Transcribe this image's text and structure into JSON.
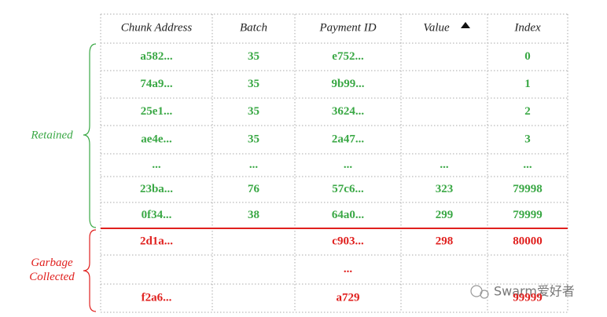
{
  "table": {
    "columns": [
      "Chunk Address",
      "Batch",
      "Payment ID",
      "Value",
      "Index"
    ],
    "groups": [
      {
        "label": [
          "Retained"
        ],
        "color": "#3aa845",
        "rows": [
          [
            "a582...",
            "35",
            "e752...",
            null,
            "0"
          ],
          [
            "74a9...",
            "35",
            "9b99...",
            null,
            "1"
          ],
          [
            "25e1...",
            "35",
            "3624...",
            null,
            "2"
          ],
          [
            "ae4e...",
            "35",
            "2a47...",
            null,
            "3"
          ],
          [
            "...",
            "...",
            "...",
            "...",
            "..."
          ],
          [
            "23ba...",
            "76",
            "57c6...",
            "323",
            "79998"
          ],
          [
            "0f34...",
            "38",
            "64a0...",
            "299",
            "79999"
          ]
        ]
      },
      {
        "label": [
          "Garbage",
          "Collected"
        ],
        "color": "#e0201e",
        "rows": [
          [
            "2d1a...",
            null,
            "c903...",
            "298",
            "80000"
          ],
          [
            null,
            null,
            "...",
            null,
            null
          ],
          [
            "f2a6...",
            null,
            "a729",
            null,
            "99999"
          ]
        ]
      }
    ]
  },
  "watermark": "Swarm爱好者"
}
